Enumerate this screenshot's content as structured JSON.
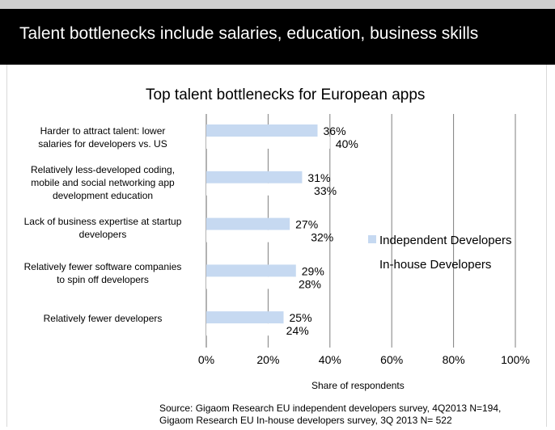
{
  "banner": {
    "title": "Talent bottlenecks include salaries, education, business skills"
  },
  "colors": {
    "banner_bg": "#000000",
    "independent_bar": "#c6d9f1",
    "inhouse_bar": "#ffffff",
    "gridline": "#7f7f7f"
  },
  "chart_data": {
    "type": "bar",
    "orientation": "horizontal",
    "title": "Top talent bottlenecks for European apps",
    "xlabel": "Share of respondents",
    "ylabel": "",
    "xlim": [
      0,
      100
    ],
    "x_ticks": [
      "0%",
      "20%",
      "40%",
      "60%",
      "80%",
      "100%"
    ],
    "grid": true,
    "legend_position": "right",
    "categories": [
      [
        "Harder to attract talent: lower",
        "salaries for developers vs. US"
      ],
      [
        "Relatively less-developed coding,",
        "mobile and social networking app",
        "development education"
      ],
      [
        "Lack of business expertise at startup",
        "developers"
      ],
      [
        "Relatively fewer software companies",
        "to spin off developers"
      ],
      [
        "Relatively fewer developers"
      ]
    ],
    "series": [
      {
        "name": "Independent Developers",
        "values": [
          36,
          31,
          27,
          29,
          25
        ],
        "labels": [
          "36%",
          "31%",
          "27%",
          "29%",
          "25%"
        ]
      },
      {
        "name": "In-house Developers",
        "values": [
          40,
          33,
          32,
          28,
          24
        ],
        "labels": [
          "40%",
          "33%",
          "32%",
          "28%",
          "24%"
        ]
      }
    ]
  },
  "source": {
    "line1": "Source: Gigaom Research EU independent developers survey, 4Q2013 N=194,",
    "line2": "Gigaom Research EU In-house developers survey, 3Q 2013 N= 522"
  }
}
